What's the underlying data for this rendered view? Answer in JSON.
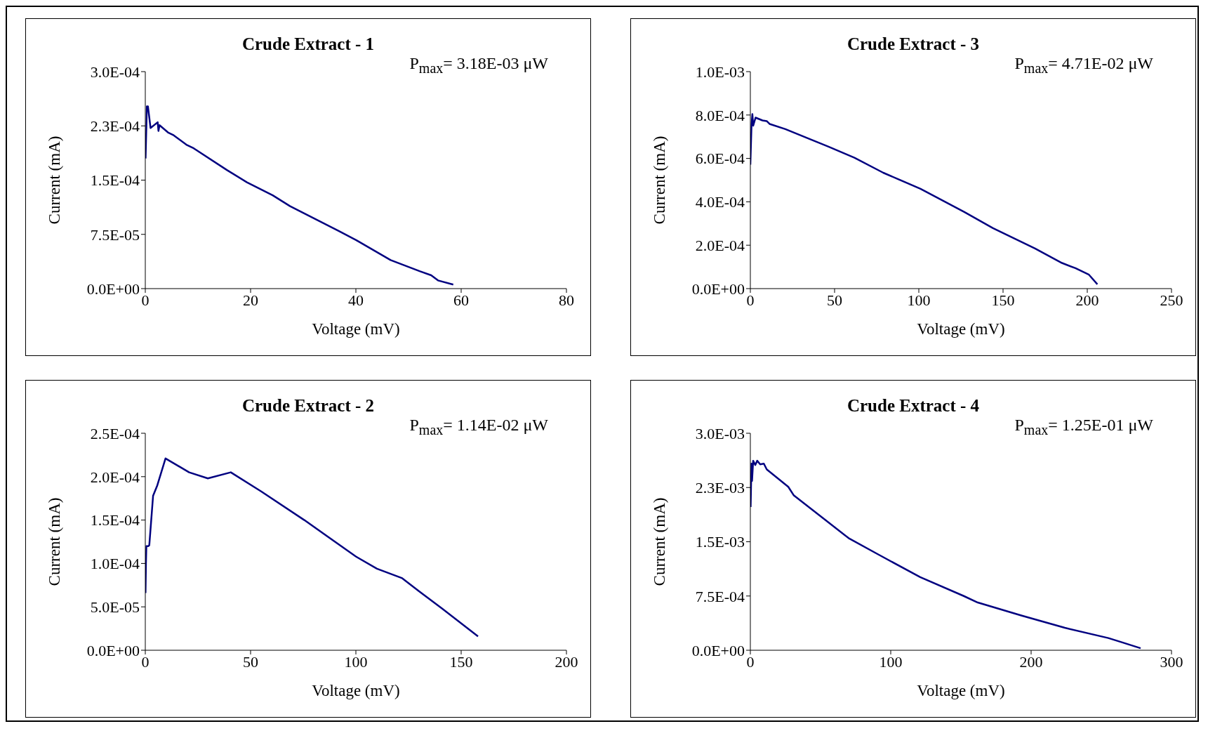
{
  "chart_data": [
    {
      "type": "line",
      "title": "Crude Extract - 1",
      "xlabel": "Voltage (mV)",
      "ylabel": "Current (mA)",
      "annotations": [
        "P$_{max}$= 3.18E-03 μW"
      ],
      "color": "#000080",
      "line_style": "solid",
      "x": [
        0.05,
        0.3,
        0.5,
        1.0,
        2.35,
        2.5,
        2.7,
        4.3,
        5.4,
        7.8,
        9.2,
        15.5,
        19.3,
        24.2,
        27.5,
        36.8,
        40.1,
        46.6,
        52.1,
        54.3,
        55.6,
        58.5
      ],
      "values": [
        0.00018,
        0.000252,
        0.000252,
        0.000222,
        0.00023,
        0.000218,
        0.000226,
        0.000216,
        0.000212,
        0.000199,
        0.000194,
        0.000164,
        0.000147,
        0.000129,
        0.000114,
        7.96e-05,
        6.68e-05,
        3.94e-05,
        2.41e-05,
        1.85e-05,
        1.13e-05,
        5.6e-06
      ],
      "xlim": [
        0,
        80
      ],
      "xticks": [
        0,
        20,
        40,
        60,
        80
      ],
      "ylim": [
        0,
        0.0003
      ],
      "yticks": [
        {
          "value": 0,
          "label": "0.0E+00"
        },
        {
          "value": 7.5e-05,
          "label": "7.5E-05"
        },
        {
          "value": 0.00015,
          "label": "1.5E-04"
        },
        {
          "value": 0.000225,
          "label": "2.3E-04"
        },
        {
          "value": 0.0003,
          "label": "3.0E-04"
        }
      ]
    },
    {
      "type": "line",
      "title": "Crude Extract - 3",
      "xlabel": "Voltage (mV)",
      "ylabel": "Current (mA)",
      "annotations": [
        "P$_{max}$= 4.71E-02 μW"
      ],
      "color": "#000080",
      "line_style": "solid",
      "x": [
        0,
        0.7,
        1.2,
        1.7,
        3.1,
        7.2,
        9.7,
        11.4,
        20.8,
        32.8,
        46.4,
        61.8,
        78.9,
        101,
        127,
        144,
        169,
        185,
        193,
        201,
        206
      ],
      "values": [
        0.000571,
        0.000755,
        0.000804,
        0.000751,
        0.000788,
        0.000775,
        0.000772,
        0.000759,
        0.000735,
        0.000697,
        0.000654,
        0.000603,
        0.000534,
        0.00046,
        0.000353,
        0.000279,
        0.000185,
        0.000118,
        9.4e-05,
        6.4e-05,
        2e-05
      ],
      "xlim": [
        0,
        250
      ],
      "xticks": [
        0,
        50,
        100,
        150,
        200,
        250
      ],
      "ylim": [
        0,
        0.001
      ],
      "yticks": [
        {
          "value": 0,
          "label": "0.0E+00"
        },
        {
          "value": 0.0002,
          "label": "2.0E-04"
        },
        {
          "value": 0.0004,
          "label": "4.0E-04"
        },
        {
          "value": 0.0006,
          "label": "6.0E-04"
        },
        {
          "value": 0.0008,
          "label": "8.0E-04"
        },
        {
          "value": 0.001,
          "label": "1.0E-03"
        }
      ]
    },
    {
      "type": "line",
      "title": "Crude Extract - 2",
      "xlabel": "Voltage (mV)",
      "ylabel": "Current (mA)",
      "annotations": [
        "P$_{max}$= 1.14E-02 μW"
      ],
      "color": "#000080",
      "line_style": "solid",
      "x": [
        0.1,
        0.3,
        0.5,
        1.4,
        1.9,
        3.7,
        5.7,
        9.6,
        20.8,
        29.7,
        40.6,
        55,
        75.5,
        100,
        110,
        122,
        130,
        141,
        158
      ],
      "values": [
        6.6e-05,
        9.9e-05,
        0.00012,
        0.00012,
        0.000121,
        0.000178,
        0.00019,
        0.000221,
        0.000205,
        0.000198,
        0.000205,
        0.000183,
        0.00015,
        0.000108,
        9.4e-05,
        8.3e-05,
        6.8e-05,
        4.8e-05,
        1.6e-05
      ],
      "xlim": [
        0,
        200
      ],
      "xticks": [
        0,
        50,
        100,
        150,
        200
      ],
      "ylim": [
        0,
        0.00025
      ],
      "yticks": [
        {
          "value": 0,
          "label": "0.0E+00"
        },
        {
          "value": 5e-05,
          "label": "5.0E-05"
        },
        {
          "value": 0.0001,
          "label": "1.0E-04"
        },
        {
          "value": 0.00015,
          "label": "1.5E-04"
        },
        {
          "value": 0.0002,
          "label": "2.0E-04"
        },
        {
          "value": 0.00025,
          "label": "2.5E-04"
        }
      ]
    },
    {
      "type": "line",
      "title": "Crude Extract - 4",
      "xlabel": "Voltage (mV)",
      "ylabel": "Current (mA)",
      "annotations": [
        "P$_{max}$= 1.25E-01 μW"
      ],
      "color": "#000080",
      "line_style": "solid",
      "x": [
        0.2,
        0.8,
        1.2,
        2.0,
        3.5,
        4.9,
        7.0,
        9.6,
        11.7,
        27,
        31,
        49.6,
        70,
        90.6,
        121,
        152,
        162,
        193,
        224,
        255,
        265,
        278
      ],
      "values": [
        0.00198,
        0.00258,
        0.00234,
        0.00262,
        0.00256,
        0.00262,
        0.00257,
        0.00258,
        0.0025,
        0.00226,
        0.00214,
        0.00186,
        0.00155,
        0.00133,
        0.00101,
        0.00075,
        0.00066,
        0.00048,
        0.00031,
        0.000169,
        0.000108,
        2.8e-05
      ],
      "xlim": [
        0,
        300
      ],
      "xticks": [
        0,
        100,
        200,
        300
      ],
      "ylim": [
        0,
        0.003
      ],
      "yticks": [
        {
          "value": 0,
          "label": "0.0E+00"
        },
        {
          "value": 0.00075,
          "label": "7.5E-04"
        },
        {
          "value": 0.0015,
          "label": "1.5E-03"
        },
        {
          "value": 0.00225,
          "label": "2.3E-03"
        },
        {
          "value": 0.003,
          "label": "3.0E-03"
        }
      ]
    }
  ]
}
